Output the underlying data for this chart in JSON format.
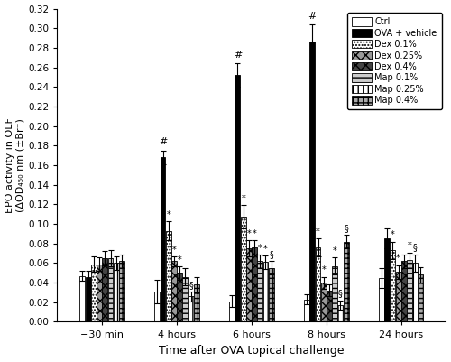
{
  "time_labels": [
    "−30 min",
    "4 hours",
    "6 hours",
    "8 hours",
    "24 hours"
  ],
  "series": [
    {
      "name": "Ctrl",
      "values": [
        0.047,
        0.031,
        0.021,
        0.023,
        0.045
      ],
      "errors": [
        0.005,
        0.012,
        0.006,
        0.005,
        0.01
      ],
      "color": "white",
      "edgecolor": "black",
      "hatch": ""
    },
    {
      "name": "OVA + vehicle",
      "values": [
        0.046,
        0.168,
        0.252,
        0.286,
        0.085
      ],
      "errors": [
        0.006,
        0.007,
        0.012,
        0.018,
        0.01
      ],
      "color": "black",
      "edgecolor": "black",
      "hatch": ""
    },
    {
      "name": "Dex 0.1%",
      "values": [
        0.059,
        0.093,
        0.107,
        0.076,
        0.073
      ],
      "errors": [
        0.008,
        0.01,
        0.012,
        0.009,
        0.009
      ],
      "color": "white",
      "edgecolor": "black",
      "hatch": "....."
    },
    {
      "name": "Dex 0.25%",
      "values": [
        0.059,
        0.062,
        0.075,
        0.04,
        0.051
      ],
      "errors": [
        0.007,
        0.005,
        0.008,
        0.006,
        0.007
      ],
      "color": "#999999",
      "edgecolor": "black",
      "hatch": "xxx"
    },
    {
      "name": "Dex 0.4%",
      "values": [
        0.065,
        0.05,
        0.076,
        0.032,
        0.062
      ],
      "errors": [
        0.007,
        0.007,
        0.007,
        0.006,
        0.007
      ],
      "color": "#444444",
      "edgecolor": "black",
      "hatch": "XXX"
    },
    {
      "name": "Map 0.1%",
      "values": [
        0.065,
        0.046,
        0.062,
        0.057,
        0.063
      ],
      "errors": [
        0.008,
        0.009,
        0.007,
        0.009,
        0.008
      ],
      "color": "#cccccc",
      "edgecolor": "black",
      "hatch": "---"
    },
    {
      "name": "Map 0.25%",
      "values": [
        0.06,
        0.026,
        0.061,
        0.017,
        0.06
      ],
      "errors": [
        0.007,
        0.005,
        0.007,
        0.005,
        0.009
      ],
      "color": "white",
      "edgecolor": "black",
      "hatch": "|||"
    },
    {
      "name": "Map 0.4%",
      "values": [
        0.062,
        0.038,
        0.055,
        0.082,
        0.048
      ],
      "errors": [
        0.007,
        0.008,
        0.007,
        0.007,
        0.008
      ],
      "color": "#aaaaaa",
      "edgecolor": "black",
      "hatch": "+++"
    }
  ],
  "hash_anno": [
    {
      "group": 1,
      "series": 1
    },
    {
      "group": 2,
      "series": 1
    },
    {
      "group": 3,
      "series": 1
    }
  ],
  "star_anno": [
    {
      "group": 1,
      "series": 2
    },
    {
      "group": 1,
      "series": 3
    },
    {
      "group": 1,
      "series": 4
    },
    {
      "group": 2,
      "series": 2
    },
    {
      "group": 2,
      "series": 3
    },
    {
      "group": 2,
      "series": 4
    },
    {
      "group": 2,
      "series": 5
    },
    {
      "group": 2,
      "series": 6
    },
    {
      "group": 3,
      "series": 2
    },
    {
      "group": 3,
      "series": 3
    },
    {
      "group": 3,
      "series": 5
    },
    {
      "group": 4,
      "series": 2
    },
    {
      "group": 4,
      "series": 3
    },
    {
      "group": 4,
      "series": 5
    }
  ],
  "section_anno": [
    {
      "group": 1,
      "series": 6
    },
    {
      "group": 2,
      "series": 7
    },
    {
      "group": 3,
      "series": 6
    },
    {
      "group": 3,
      "series": 7
    },
    {
      "group": 4,
      "series": 6
    }
  ],
  "ylim": [
    0.0,
    0.32
  ],
  "yticks": [
    0.0,
    0.02,
    0.04,
    0.06,
    0.08,
    0.1,
    0.12,
    0.14,
    0.16,
    0.18,
    0.2,
    0.22,
    0.24,
    0.26,
    0.28,
    0.3,
    0.32
  ],
  "ylabel": "EPO activity in OLF\n(ΔOD₄₅₀ nm (±Br⁻)",
  "xlabel": "Time after OVA topical challenge",
  "bar_width": 0.075,
  "figsize": [
    5.0,
    4.01
  ],
  "dpi": 100
}
